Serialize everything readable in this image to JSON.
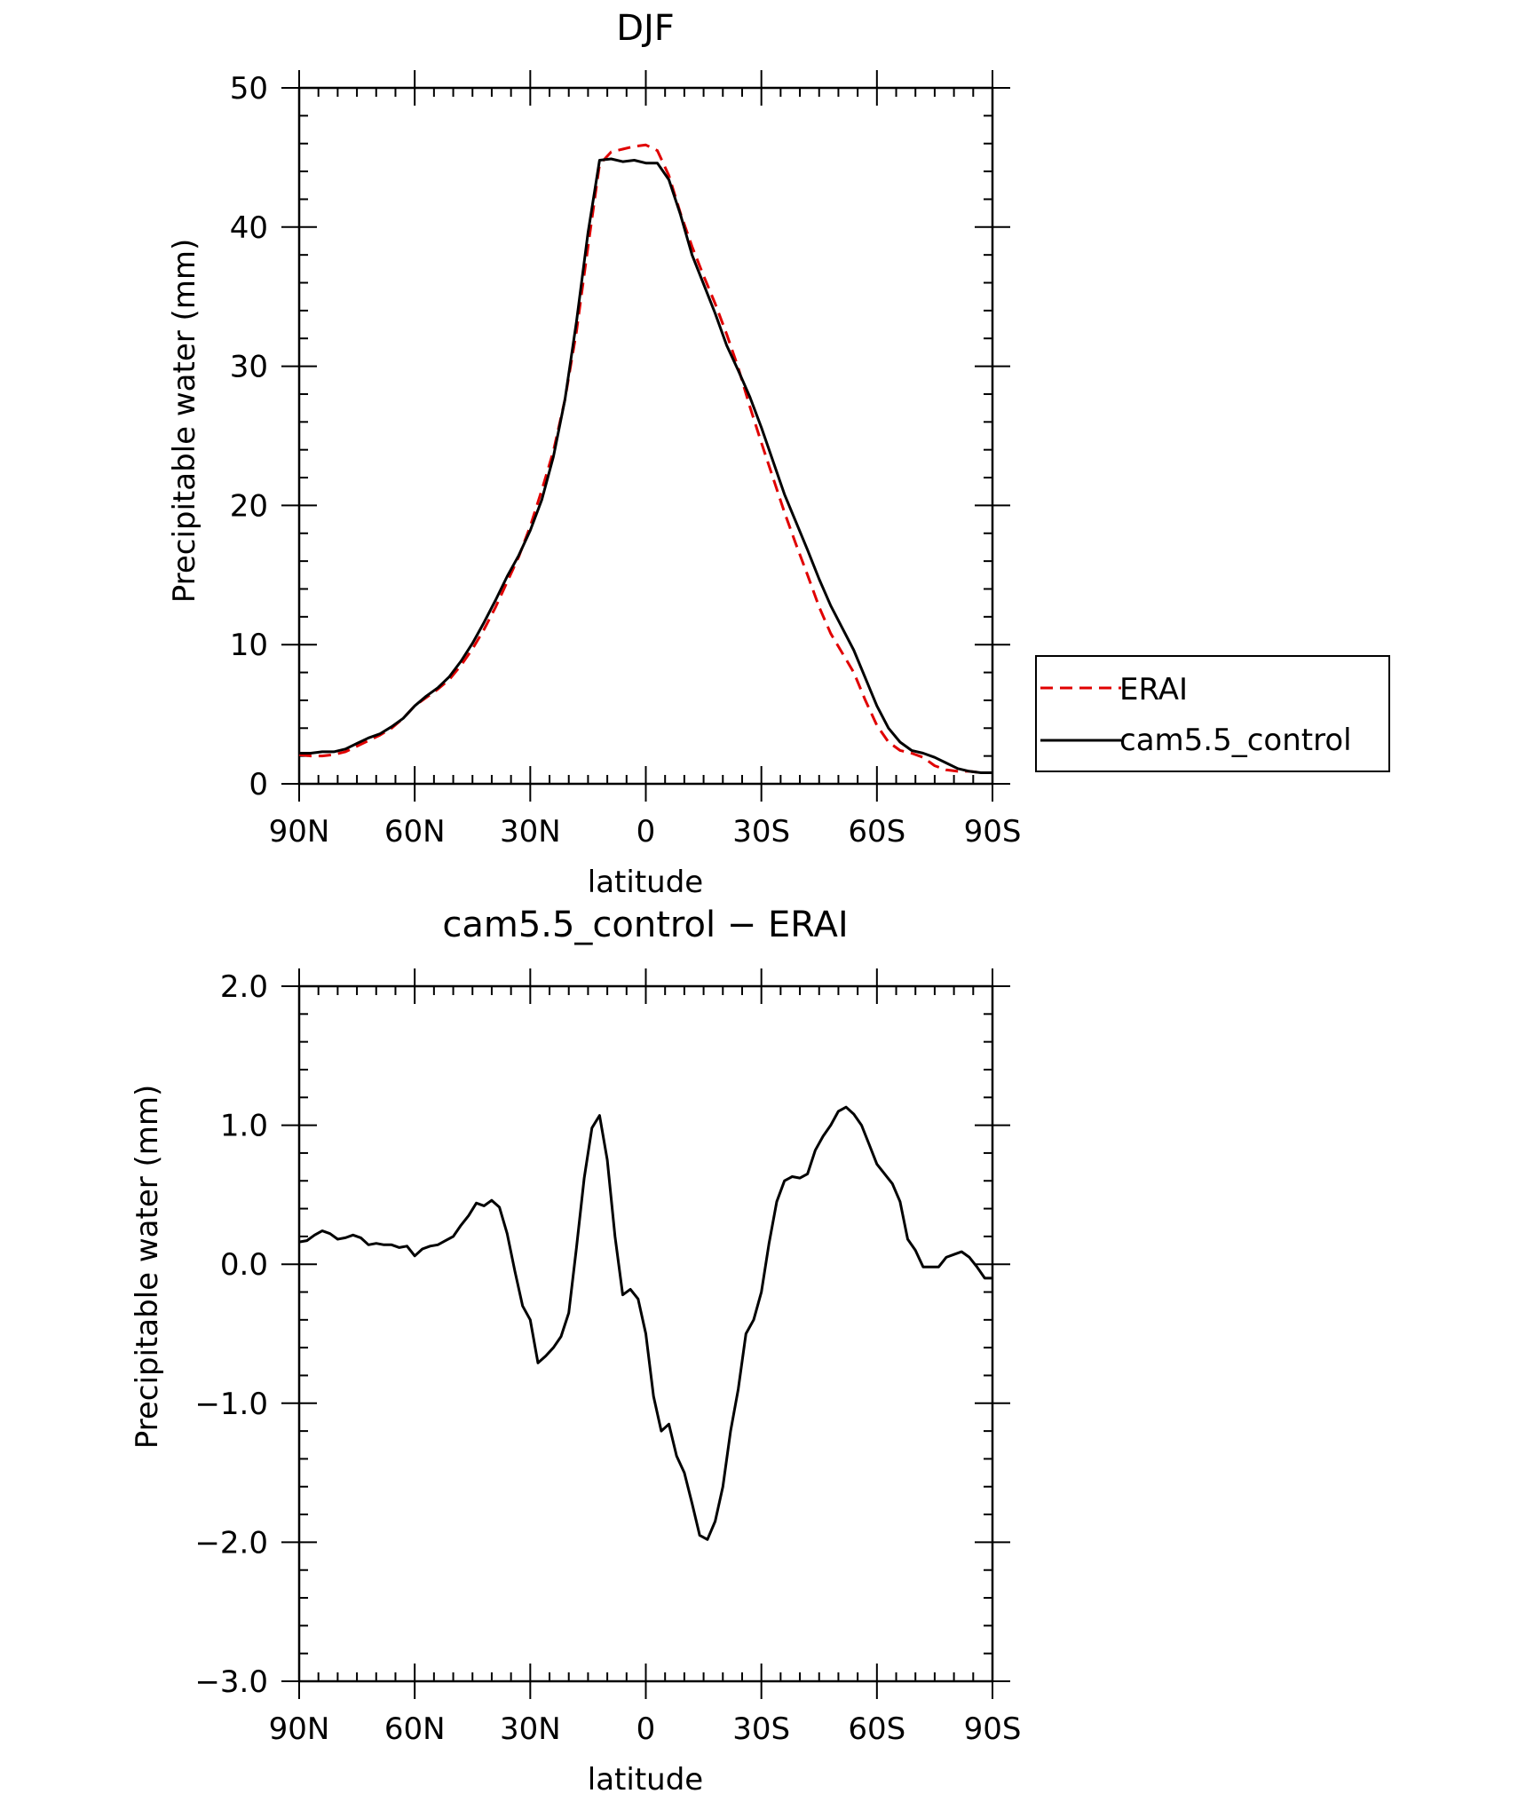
{
  "chart_data": [
    {
      "type": "line",
      "title": "DJF",
      "xlabel": "latitude",
      "ylabel": "Precipitable water (mm)",
      "xlim": [
        90,
        -90
      ],
      "ylim": [
        0,
        50
      ],
      "x_ticks": [
        90,
        60,
        30,
        0,
        -30,
        -60,
        -90
      ],
      "x_tick_labels": [
        "90N",
        "60N",
        "30N",
        "0",
        "30S",
        "60S",
        "90S"
      ],
      "y_ticks": [
        0,
        10,
        20,
        30,
        40,
        50
      ],
      "y_tick_labels": [
        "0",
        "10",
        "20",
        "30",
        "40",
        "50"
      ],
      "legend": {
        "position": "right",
        "entries": [
          "ERAI",
          "cam5.5_control"
        ]
      },
      "series": [
        {
          "name": "ERAI",
          "color": "#e00000",
          "dash": "dashed",
          "x": [
            90,
            87,
            84,
            81,
            78,
            75,
            72,
            69,
            66,
            63,
            60,
            57,
            54,
            51,
            48,
            45,
            42,
            39,
            36,
            33,
            30,
            27,
            24,
            21,
            18,
            15,
            12,
            9,
            6,
            3,
            0,
            -3,
            -6,
            -9,
            -12,
            -15,
            -18,
            -21,
            -24,
            -27,
            -30,
            -33,
            -36,
            -39,
            -42,
            -45,
            -48,
            -51,
            -54,
            -57,
            -60,
            -63,
            -66,
            -69,
            -72,
            -75,
            -78,
            -81,
            -84,
            -87,
            -90
          ],
          "y": [
            2.1,
            2.0,
            2.0,
            2.1,
            2.3,
            2.7,
            3.1,
            3.5,
            4.0,
            4.7,
            5.6,
            6.2,
            6.8,
            7.5,
            8.5,
            9.7,
            11.1,
            12.7,
            14.5,
            16.3,
            18.5,
            21.1,
            23.9,
            27.6,
            32.5,
            38.6,
            44.5,
            45.4,
            45.6,
            45.8,
            45.9,
            45.5,
            43.7,
            41.0,
            38.6,
            36.5,
            34.5,
            32.3,
            29.9,
            27.1,
            24.5,
            22.0,
            19.5,
            17.2,
            15.0,
            12.7,
            10.8,
            9.4,
            8.0,
            6.0,
            4.2,
            3.0,
            2.4,
            2.2,
            1.9,
            1.3,
            1.0,
            0.9,
            0.9,
            0.8,
            0.8
          ]
        },
        {
          "name": "cam5.5_control",
          "color": "#000000",
          "dash": "solid",
          "x": [
            90,
            87,
            84,
            81,
            78,
            75,
            72,
            69,
            66,
            63,
            60,
            57,
            54,
            51,
            48,
            45,
            42,
            39,
            36,
            33,
            30,
            27,
            24,
            21,
            18,
            15,
            12,
            9,
            6,
            3,
            0,
            -3,
            -6,
            -9,
            -12,
            -15,
            -18,
            -21,
            -24,
            -27,
            -30,
            -33,
            -36,
            -39,
            -42,
            -45,
            -48,
            -51,
            -54,
            -57,
            -60,
            -63,
            -66,
            -69,
            -72,
            -75,
            -78,
            -81,
            -84,
            -87,
            -90
          ],
          "y": [
            2.2,
            2.2,
            2.3,
            2.3,
            2.5,
            2.9,
            3.3,
            3.6,
            4.1,
            4.7,
            5.6,
            6.3,
            6.9,
            7.7,
            8.8,
            10.1,
            11.6,
            13.2,
            14.9,
            16.4,
            18.2,
            20.4,
            23.5,
            27.6,
            33.2,
            39.6,
            44.8,
            44.9,
            44.7,
            44.8,
            44.6,
            44.6,
            43.4,
            40.9,
            38.0,
            35.9,
            33.8,
            31.5,
            29.7,
            27.8,
            25.6,
            23.2,
            20.8,
            18.8,
            16.8,
            14.7,
            12.8,
            11.2,
            9.6,
            7.6,
            5.6,
            4.0,
            3.0,
            2.4,
            2.2,
            1.9,
            1.5,
            1.1,
            0.9,
            0.8,
            0.8
          ]
        }
      ]
    },
    {
      "type": "line",
      "title": "cam5.5_control − ERAI",
      "xlabel": "latitude",
      "ylabel": "Precipitable water (mm)",
      "xlim": [
        90,
        -90
      ],
      "ylim": [
        -3.0,
        2.0
      ],
      "x_ticks": [
        90,
        60,
        30,
        0,
        -30,
        -60,
        -90
      ],
      "x_tick_labels": [
        "90N",
        "60N",
        "30N",
        "0",
        "30S",
        "60S",
        "90S"
      ],
      "y_ticks": [
        -3.0,
        -2.0,
        -1.0,
        0.0,
        1.0,
        2.0
      ],
      "y_tick_labels": [
        "−3.0",
        "−2.0",
        "−1.0",
        "0.0",
        "1.0",
        "2.0"
      ],
      "series": [
        {
          "name": "cam5.5_control − ERAI",
          "color": "#000000",
          "dash": "solid",
          "x": [
            90,
            88,
            86,
            84,
            82,
            80,
            78,
            76,
            74,
            72,
            70,
            68,
            66,
            64,
            62,
            60,
            58,
            56,
            54,
            52,
            50,
            48,
            46,
            44,
            42,
            40,
            38,
            36,
            34,
            32,
            30,
            28,
            26,
            24,
            22,
            20,
            18,
            16,
            14,
            12,
            10,
            8,
            6,
            4,
            2,
            0,
            -2,
            -4,
            -6,
            -8,
            -10,
            -12,
            -14,
            -16,
            -18,
            -20,
            -22,
            -24,
            -26,
            -28,
            -30,
            -32,
            -34,
            -36,
            -38,
            -40,
            -42,
            -44,
            -46,
            -48,
            -50,
            -52,
            -54,
            -56,
            -58,
            -60,
            -62,
            -64,
            -66,
            -68,
            -70,
            -72,
            -74,
            -76,
            -78,
            -80,
            -82,
            -84,
            -86,
            -88,
            -90
          ],
          "y": [
            0.16,
            0.17,
            0.21,
            0.24,
            0.22,
            0.18,
            0.19,
            0.21,
            0.19,
            0.14,
            0.15,
            0.14,
            0.14,
            0.12,
            0.13,
            0.06,
            0.11,
            0.13,
            0.14,
            0.17,
            0.2,
            0.28,
            0.35,
            0.44,
            0.42,
            0.46,
            0.41,
            0.22,
            -0.05,
            -0.3,
            -0.4,
            -0.71,
            -0.66,
            -0.6,
            -0.52,
            -0.35,
            0.12,
            0.62,
            0.98,
            1.07,
            0.75,
            0.2,
            -0.22,
            -0.18,
            -0.25,
            -0.5,
            -0.95,
            -1.2,
            -1.15,
            -1.38,
            -1.5,
            -1.72,
            -1.95,
            -1.98,
            -1.85,
            -1.6,
            -1.2,
            -0.9,
            -0.5,
            -0.4,
            -0.2,
            0.15,
            0.45,
            0.6,
            0.63,
            0.62,
            0.65,
            0.82,
            0.92,
            1.0,
            1.1,
            1.13,
            1.08,
            1.0,
            0.86,
            0.72,
            0.65,
            0.58,
            0.45,
            0.18,
            0.1,
            -0.02,
            -0.02,
            -0.02,
            0.05,
            0.07,
            0.09,
            0.05,
            -0.02,
            -0.1,
            -0.1
          ]
        }
      ]
    }
  ]
}
